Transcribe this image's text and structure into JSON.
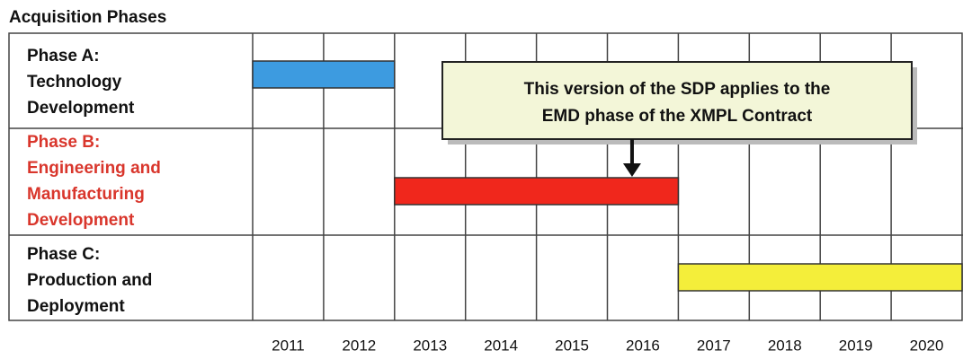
{
  "chart_data": {
    "type": "gantt",
    "title": "Acquisition Phases",
    "xlim": [
      2011,
      2021
    ],
    "xticks": [
      2011,
      2012,
      2013,
      2014,
      2015,
      2016,
      2017,
      2018,
      2019,
      2020
    ],
    "years": [
      "2011",
      "2012",
      "2013",
      "2014",
      "2015",
      "2016",
      "2017",
      "2018",
      "2019",
      "2020"
    ],
    "tasks": [
      {
        "label_lines": [
          "Phase A:",
          "Technology",
          "Development"
        ],
        "label_color": "#111111",
        "start": 2011,
        "end": 2013,
        "color": "#3d9be0"
      },
      {
        "label_lines": [
          "Phase B:",
          "Engineering and",
          "Manufacturing",
          "Development"
        ],
        "label_color": "#d9362c",
        "start": 2013,
        "end": 2017,
        "color": "#f0271c"
      },
      {
        "label_lines": [
          "Phase C:",
          "Production and",
          "Deployment"
        ],
        "label_color": "#111111",
        "start": 2017,
        "end": 2021,
        "color": "#f4ee3a"
      }
    ],
    "annotation": {
      "lines": [
        "This version of the SDP applies to the",
        "EMD phase of the XMPL Contract"
      ],
      "points_to": 2016
    }
  }
}
